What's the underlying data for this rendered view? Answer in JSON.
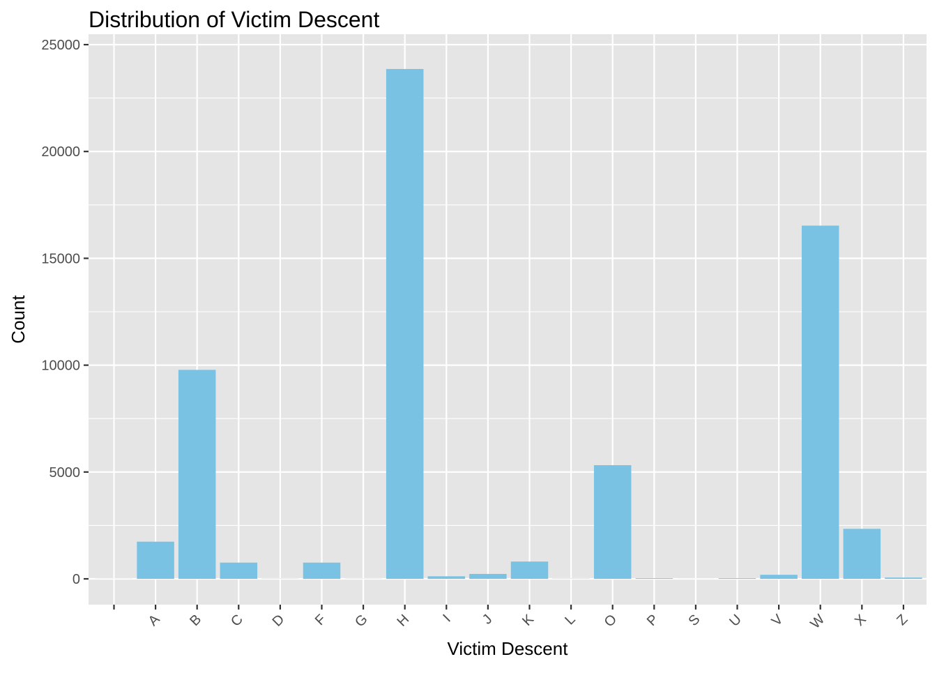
{
  "chart_data": {
    "type": "bar",
    "title": "Distribution of Victim Descent",
    "xlabel": "Victim Descent",
    "ylabel": "Count",
    "categories": [
      "",
      "A",
      "B",
      "C",
      "D",
      "F",
      "G",
      "H",
      "I",
      "J",
      "K",
      "L",
      "O",
      "P",
      "S",
      "U",
      "V",
      "W",
      "X",
      "Z"
    ],
    "values": [
      5,
      1740,
      9780,
      760,
      8,
      760,
      6,
      23860,
      120,
      230,
      810,
      10,
      5320,
      30,
      3,
      30,
      190,
      16530,
      2340,
      60
    ],
    "ylim": [
      0,
      25000
    ],
    "yticks": [
      0,
      5000,
      10000,
      15000,
      20000,
      25000
    ],
    "grid": true,
    "legend": "none",
    "colors": {
      "bar": "#79c2e4",
      "panel": "#e5e5e5",
      "grid": "#ffffff",
      "tick_text": "#4d4d4d"
    }
  }
}
